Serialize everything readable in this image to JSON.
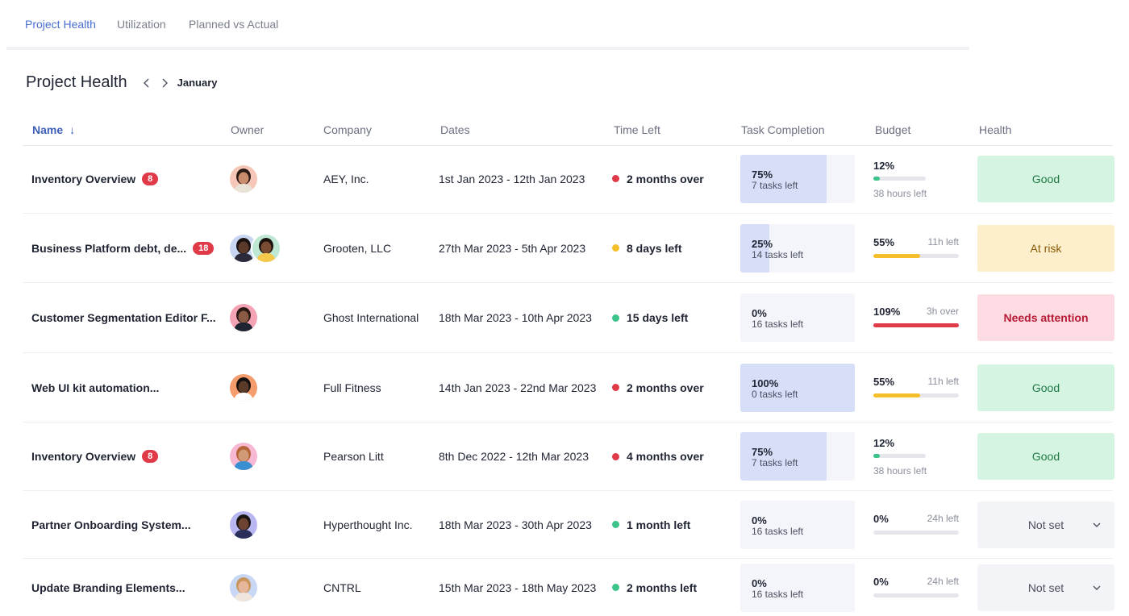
{
  "tabs": [
    {
      "label": "Project Health",
      "active": true
    },
    {
      "label": "Utilization",
      "active": false
    },
    {
      "label": "Planned vs Actual",
      "active": false
    }
  ],
  "page": {
    "title": "Project Health",
    "month": "January",
    "prev_icon": "chevron-left-icon",
    "next_icon": "chevron-right-icon"
  },
  "columns": {
    "name": "Name",
    "owner": "Owner",
    "company": "Company",
    "dates": "Dates",
    "time_left": "Time Left",
    "task_completion": "Task Completion",
    "budget": "Budget",
    "health": "Health",
    "sort_icon": "↓"
  },
  "colors": {
    "accent": "#4a6fd1",
    "status_red": "#e03a49",
    "status_yellow": "#f5bf2b",
    "status_green": "#3dc48a",
    "budget_red": "#e03a49",
    "budget_yellow": "#f5bf2b",
    "budget_green": "#3dc48a"
  },
  "rows": [
    {
      "name": "Inventory Overview",
      "badge": "8",
      "owners": [
        "avatar-1"
      ],
      "company": "AEY, Inc.",
      "dates": "1st Jan 2023 - 12th Jan 2023",
      "time_status": "red",
      "time_left": "2 months over",
      "task_pct": "75%",
      "task_fraction": 0.75,
      "task_sub": "7 tasks left",
      "budget_pct": "12%",
      "budget_fraction": 0.12,
      "budget_note": "38 hours left",
      "budget_color": "green",
      "budget_compact": true,
      "health": "Good",
      "health_kind": "good"
    },
    {
      "name": "Business Platform debt, de...",
      "badge": "18",
      "owners": [
        "avatar-2",
        "avatar-3"
      ],
      "company": "Grooten, LLC",
      "dates": "27th Mar 2023 - 5th Apr 2023",
      "time_status": "yellow",
      "time_left": "8 days left",
      "task_pct": "25%",
      "task_fraction": 0.25,
      "task_sub": "14 tasks left",
      "budget_pct": "55%",
      "budget_fraction": 0.55,
      "budget_note": "11h left",
      "budget_color": "yellow",
      "budget_compact": false,
      "health": "At risk",
      "health_kind": "risk"
    },
    {
      "name": "Customer Segmentation Editor F...",
      "badge": "",
      "owners": [
        "avatar-4"
      ],
      "company": "Ghost International",
      "dates": "18th Mar 2023 - 10th Apr 2023",
      "time_status": "green",
      "time_left": "15 days left",
      "task_pct": "0%",
      "task_fraction": 0,
      "task_sub": "16 tasks left",
      "budget_pct": "109%",
      "budget_fraction": 1.0,
      "budget_note": "3h over",
      "budget_color": "red",
      "budget_compact": false,
      "health": "Needs attention",
      "health_kind": "attention"
    },
    {
      "name": "Web UI kit automation...",
      "badge": "",
      "owners": [
        "avatar-5"
      ],
      "company": "Full Fitness",
      "dates": "14th Jan 2023 - 22nd Mar 2023",
      "time_status": "red",
      "time_left": "2 months over",
      "task_pct": "100%",
      "task_fraction": 1.0,
      "task_sub": "0 tasks left",
      "budget_pct": "55%",
      "budget_fraction": 0.55,
      "budget_note": "11h left",
      "budget_color": "yellow",
      "budget_compact": false,
      "health": "Good",
      "health_kind": "good"
    },
    {
      "name": "Inventory Overview",
      "badge": "8",
      "owners": [
        "avatar-6"
      ],
      "company": "Pearson Litt",
      "dates": "8th Dec 2022 - 12th Mar 2023",
      "time_status": "red",
      "time_left": "4 months over",
      "task_pct": "75%",
      "task_fraction": 0.75,
      "task_sub": "7 tasks left",
      "budget_pct": "12%",
      "budget_fraction": 0.12,
      "budget_note": "38 hours left",
      "budget_color": "green",
      "budget_compact": true,
      "health": "Good",
      "health_kind": "good"
    },
    {
      "name": "Partner Onboarding System...",
      "badge": "",
      "owners": [
        "avatar-7"
      ],
      "company": "Hyperthought Inc.",
      "dates": "18th Mar 2023 - 30th Apr 2023",
      "time_status": "green",
      "time_left": "1 month left",
      "task_pct": "0%",
      "task_fraction": 0,
      "task_sub": "16 tasks left",
      "budget_pct": "0%",
      "budget_fraction": 0,
      "budget_note": "24h left",
      "budget_color": "green",
      "budget_compact": false,
      "health": "Not set",
      "health_kind": "notset"
    },
    {
      "name": "Update Branding Elements...",
      "badge": "",
      "owners": [
        "avatar-8"
      ],
      "company": "CNTRL",
      "dates": "15th Mar 2023 - 18th May 2023",
      "time_status": "green",
      "time_left": "2 months left",
      "task_pct": "0%",
      "task_fraction": 0,
      "task_sub": "16 tasks left",
      "budget_pct": "0%",
      "budget_fraction": 0,
      "budget_note": "24h left",
      "budget_color": "green",
      "budget_compact": false,
      "health": "Not set",
      "health_kind": "notset"
    }
  ]
}
